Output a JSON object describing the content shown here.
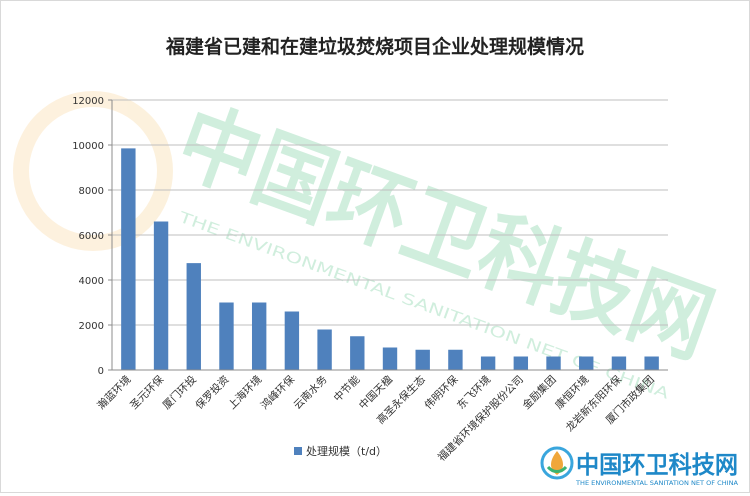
{
  "chart_data": {
    "type": "bar",
    "title": "福建省已建和在建垃圾焚烧项目企业处理规模情况",
    "categories": [
      "瀚蓝环境",
      "圣元环保",
      "厦门环投",
      "保罗投资",
      "上海环境",
      "鸿峰环保",
      "云南水务",
      "中节能",
      "中国天楹",
      "高圣永保生态",
      "伟明环保",
      "东飞环境",
      "福建省环境保护股份公司",
      "金励集团",
      "康恒环境",
      "龙岩新东阳环保",
      "厦门市政集团"
    ],
    "series": [
      {
        "name": "处理规模（t/d）",
        "values": [
          9850,
          6600,
          4750,
          3000,
          3000,
          2600,
          1800,
          1500,
          1000,
          900,
          900,
          600,
          600,
          600,
          600,
          600,
          600
        ]
      }
    ],
    "xlabel": "",
    "ylabel": "",
    "ylim": [
      0,
      12000
    ],
    "yticks": [
      0,
      2000,
      4000,
      6000,
      8000,
      10000,
      12000
    ],
    "grid": true,
    "legend_position": "bottom",
    "bar_color": "#4f81bd"
  },
  "watermark": {
    "brand": "中国环卫科技网",
    "subtitle": "THE ENVIRONMENTAL SANITATION NET OF CHINA",
    "brand_color": "#1e88c8",
    "logo_icon": "leaf-drop-logo-icon"
  }
}
